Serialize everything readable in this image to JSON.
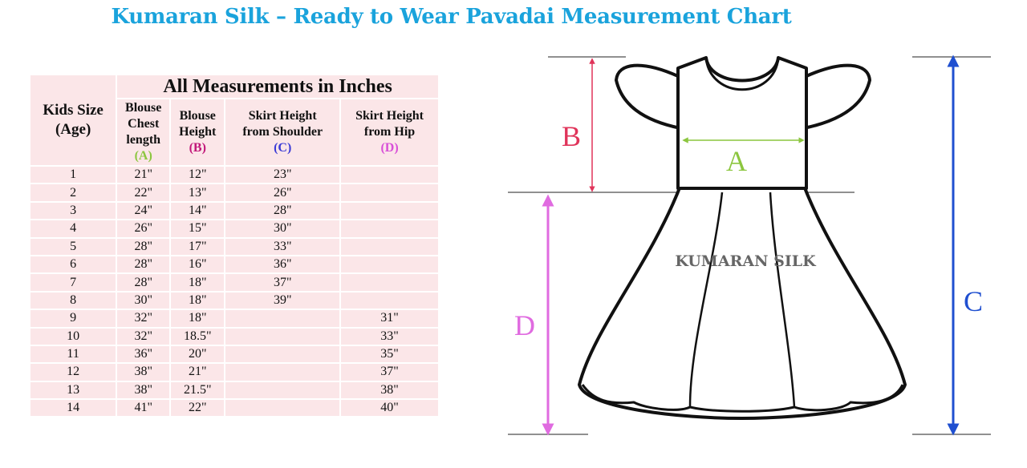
{
  "title": "Kumaran Silk – Ready to Wear Pavadai Measurement Chart",
  "table": {
    "units_header": "All Measurements in Inches",
    "size_header": [
      "Kids Size",
      "(Age)"
    ],
    "columns": [
      {
        "lines": [
          "Blouse",
          "Chest",
          "length"
        ],
        "code": "(A)",
        "color": "#8cc63f"
      },
      {
        "lines": [
          "Blouse",
          "Height"
        ],
        "code": "(B)",
        "color": "#c2187a"
      },
      {
        "lines": [
          "Skirt Height",
          "from Shoulder"
        ],
        "code": "(C)",
        "color": "#3b3bd6"
      },
      {
        "lines": [
          "Skirt Height",
          "from Hip"
        ],
        "code": "(D)",
        "color": "#d84fd8"
      }
    ],
    "rows": [
      [
        "1",
        "21\"",
        "12\"",
        "23\"",
        ""
      ],
      [
        "2",
        "22\"",
        "13\"",
        "26\"",
        ""
      ],
      [
        "3",
        "24\"",
        "14\"",
        "28\"",
        ""
      ],
      [
        "4",
        "26\"",
        "15\"",
        "30\"",
        ""
      ],
      [
        "5",
        "28\"",
        "17\"",
        "33\"",
        ""
      ],
      [
        "6",
        "28\"",
        "16\"",
        "36\"",
        ""
      ],
      [
        "7",
        "28\"",
        "18\"",
        "37\"",
        ""
      ],
      [
        "8",
        "30\"",
        "18\"",
        "39\"",
        ""
      ],
      [
        "9",
        "32\"",
        "18\"",
        "",
        "31\""
      ],
      [
        "10",
        "32\"",
        "18.5\"",
        "",
        "33\""
      ],
      [
        "11",
        "36\"",
        "20\"",
        "",
        "35\""
      ],
      [
        "12",
        "38\"",
        "21\"",
        "",
        "37\""
      ],
      [
        "13",
        "38\"",
        "21.5\"",
        "",
        "38\""
      ],
      [
        "14",
        "41\"",
        "22\"",
        "",
        "40\""
      ]
    ]
  },
  "diagram": {
    "labels": {
      "A": "A",
      "B": "B",
      "C": "C",
      "D": "D"
    },
    "colors": {
      "A": "#8cc63f",
      "B": "#e0345a",
      "C": "#1f4fd0",
      "D": "#e06be0"
    },
    "watermark": "KUMARAN SILK"
  }
}
